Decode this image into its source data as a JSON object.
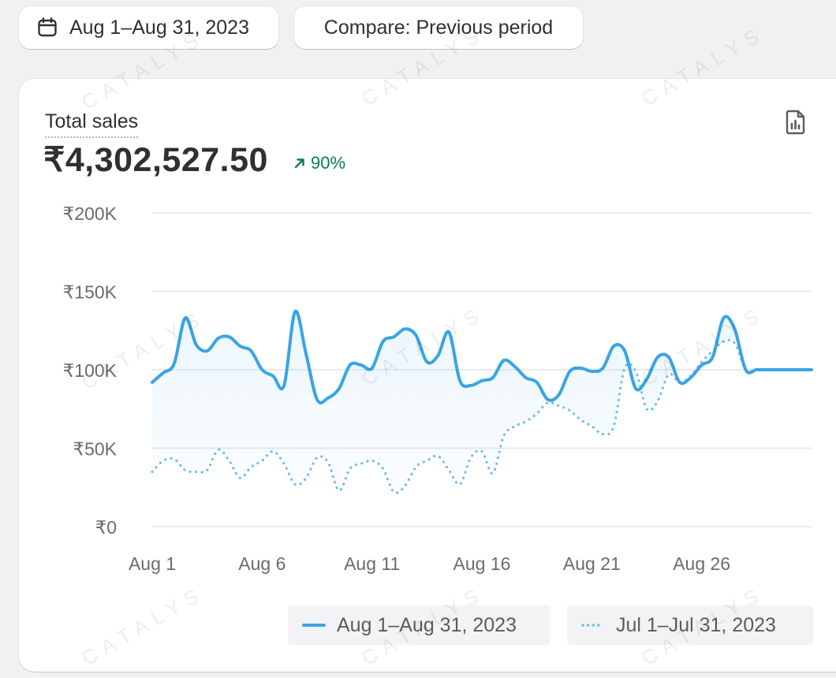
{
  "controls": {
    "date_range_label": "Aug 1–Aug 31, 2023",
    "calendar_icon": "calendar-icon",
    "compare_label": "Compare: Previous period"
  },
  "metric": {
    "label": "Total sales",
    "value": "₹4,302,527.50",
    "change": "90%",
    "change_direction": "up",
    "change_color": "#0c7a54",
    "export_icon": "export-report-icon"
  },
  "watermark": "CATALYS",
  "chart_data": {
    "type": "line",
    "title": "Total sales",
    "xlabel": "",
    "ylabel": "",
    "ylim": [
      0,
      200000
    ],
    "yticks": [
      0,
      50000,
      100000,
      150000,
      200000
    ],
    "ytick_labels": [
      "₹0",
      "₹50K",
      "₹100K",
      "₹150K",
      "₹200K"
    ],
    "xtick_labels": [
      "Aug 1",
      "Aug 6",
      "Aug 11",
      "Aug 16",
      "Aug 21",
      "Aug 26"
    ],
    "xtick_days": [
      1,
      6,
      11,
      16,
      21,
      26
    ],
    "grid": true,
    "legend_position": "bottom-right",
    "series": [
      {
        "name": "Aug 1–Aug 31, 2023",
        "style": "solid",
        "color": "#3aa4e4",
        "x": [
          1,
          1.5,
          2,
          2.5,
          3,
          3.5,
          4,
          4.5,
          5,
          5.5,
          6,
          6.5,
          7,
          7.5,
          8,
          8.5,
          9,
          9.5,
          10,
          10.5,
          11,
          11.5,
          12,
          12.5,
          13,
          13.5,
          14,
          14.5,
          15,
          15.5,
          16,
          16.5,
          17,
          17.5,
          18,
          18.5,
          19,
          19.5,
          20,
          20.5,
          21,
          21.5,
          22,
          22.5,
          23,
          23.5,
          24,
          24.5,
          25,
          25.5,
          26,
          26.5,
          27,
          27.5,
          28,
          28.5,
          29,
          29.5,
          30,
          30.5,
          31
        ],
        "values": [
          92000,
          98000,
          104000,
          133000,
          116000,
          112000,
          120000,
          121000,
          115000,
          112000,
          100000,
          96000,
          90000,
          137000,
          110000,
          81000,
          82000,
          88000,
          103000,
          103000,
          101000,
          118000,
          121000,
          126000,
          122000,
          105000,
          109000,
          124000,
          93000,
          90000,
          93000,
          95000,
          106000,
          102000,
          95000,
          92000,
          81000,
          84000,
          99000,
          101000,
          99000,
          101000,
          115000,
          112000,
          88000,
          94000,
          108000,
          108000,
          92000,
          95000,
          103000,
          108000,
          133000,
          126000,
          100000,
          100000,
          100000,
          100000,
          100000,
          100000,
          100000
        ]
      },
      {
        "name": "Jul 1–Jul 31, 2023",
        "style": "dotted",
        "color": "#72bcec",
        "x": [
          1,
          1.5,
          2,
          2.5,
          3,
          3.5,
          4,
          4.5,
          5,
          5.5,
          6,
          6.5,
          7,
          7.5,
          8,
          8.5,
          9,
          9.5,
          10,
          10.5,
          11,
          11.5,
          12,
          12.5,
          13,
          13.5,
          14,
          14.5,
          15,
          15.5,
          16,
          16.5,
          17,
          17.5,
          18,
          18.5,
          19,
          19.5,
          20,
          20.5,
          21,
          21.5,
          22,
          22.5,
          23,
          23.5,
          24,
          24.5,
          25,
          25.5,
          26,
          26.5,
          27,
          27.5,
          28,
          28.5,
          29,
          29.5,
          30,
          30.5,
          31
        ],
        "values": [
          35000,
          42000,
          43000,
          36000,
          35000,
          36000,
          49000,
          42000,
          31000,
          38000,
          42000,
          48000,
          40000,
          27000,
          31000,
          44000,
          41000,
          23000,
          37000,
          40000,
          42000,
          37000,
          22000,
          26000,
          38000,
          42000,
          45000,
          36000,
          27000,
          44000,
          48000,
          34000,
          58000,
          64000,
          67000,
          72000,
          79000,
          77000,
          74000,
          68000,
          64000,
          59000,
          64000,
          101000,
          99000,
          75000,
          80000,
          97000,
          92000,
          96000,
          105000,
          112000,
          118000,
          117000,
          100000,
          100000,
          100000,
          100000,
          100000,
          100000,
          100000
        ]
      }
    ]
  }
}
